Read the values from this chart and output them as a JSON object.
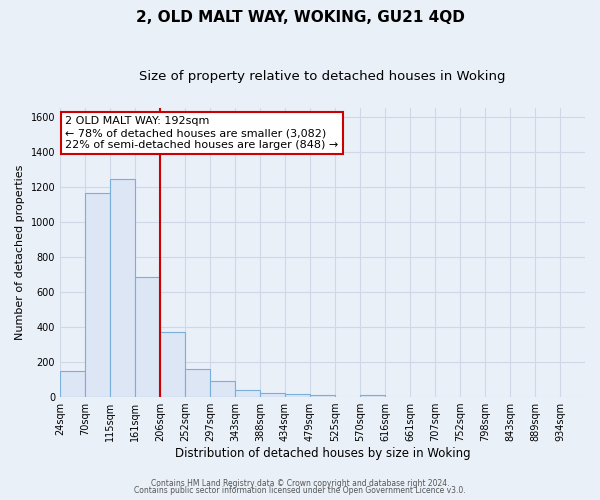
{
  "title": "2, OLD MALT WAY, WOKING, GU21 4QD",
  "subtitle": "Size of property relative to detached houses in Woking",
  "xlabel": "Distribution of detached houses by size in Woking",
  "ylabel": "Number of detached properties",
  "footer_line1": "Contains HM Land Registry data © Crown copyright and database right 2024.",
  "footer_line2": "Contains public sector information licensed under the Open Government Licence v3.0.",
  "bin_labels": [
    "24sqm",
    "70sqm",
    "115sqm",
    "161sqm",
    "206sqm",
    "252sqm",
    "297sqm",
    "343sqm",
    "388sqm",
    "434sqm",
    "479sqm",
    "525sqm",
    "570sqm",
    "616sqm",
    "661sqm",
    "707sqm",
    "752sqm",
    "798sqm",
    "843sqm",
    "889sqm",
    "934sqm"
  ],
  "bar_values": [
    150,
    1165,
    1245,
    685,
    370,
    160,
    90,
    38,
    25,
    20,
    10,
    0,
    10,
    0,
    0,
    0,
    0,
    0,
    0,
    0,
    0
  ],
  "bar_color": "#dce6f5",
  "bar_edge_color": "#7aafda",
  "ylim": [
    0,
    1650
  ],
  "yticks": [
    0,
    200,
    400,
    600,
    800,
    1000,
    1200,
    1400,
    1600
  ],
  "property_line_x": 4.0,
  "property_line_color": "#cc0000",
  "annotation_title": "2 OLD MALT WAY: 192sqm",
  "annotation_line1": "← 78% of detached houses are smaller (3,082)",
  "annotation_line2": "22% of semi-detached houses are larger (848) →",
  "annotation_box_facecolor": "#ffffff",
  "annotation_box_edgecolor": "#cc0000",
  "plot_bg_color": "#eaf0f8",
  "fig_bg_color": "#eaf0f8",
  "grid_color": "#d0d8e8",
  "title_fontsize": 11,
  "subtitle_fontsize": 9.5,
  "ylabel_fontsize": 8,
  "xlabel_fontsize": 8.5,
  "tick_fontsize": 7,
  "annotation_fontsize": 8,
  "footer_fontsize": 5.5
}
